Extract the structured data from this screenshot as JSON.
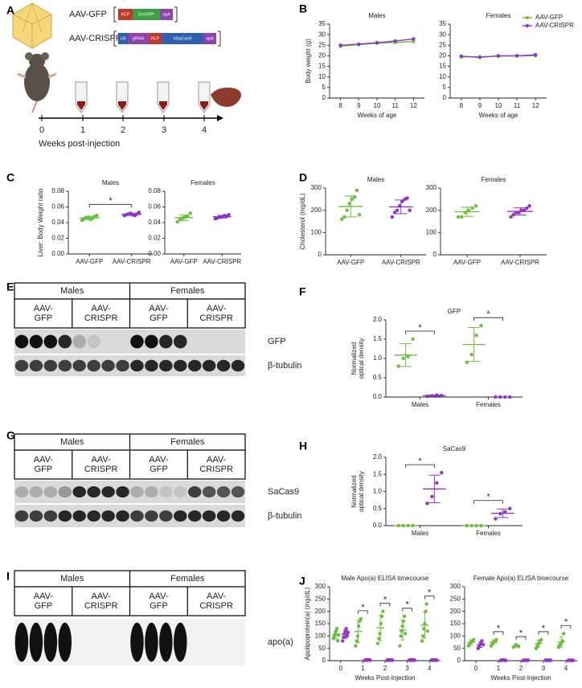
{
  "panel_labels": [
    "A",
    "B",
    "C",
    "D",
    "E",
    "F",
    "G",
    "H",
    "I",
    "J"
  ],
  "diagram": {
    "vectors": [
      {
        "name": "AAV-GFP",
        "elements": [
          "HLP",
          "EmGFP",
          "spA"
        ]
      },
      {
        "name": "AAV-CRISPR",
        "elements": [
          "U6",
          "gRNA",
          "HLP",
          "hSaCas9",
          "spA"
        ]
      }
    ],
    "timeline": {
      "ticks": [
        0,
        1,
        2,
        3,
        4
      ],
      "label": "Weeks post-injection"
    }
  },
  "blots": [
    {
      "groups": [
        "Males",
        "Females"
      ],
      "conditions": [
        "AAV-GFP",
        "AAV-CRISPR",
        "AAV-GFP",
        "AAV-CRISPR"
      ],
      "bands": [
        "GFP",
        "β-tubulin"
      ]
    },
    {
      "groups": [
        "Males",
        "Females"
      ],
      "conditions": [
        "AAV-GFP",
        "AAV-CRISPR",
        "AAV-GFP",
        "AAV-CRISPR"
      ],
      "bands": [
        "SaCas9",
        "β-tubulin"
      ]
    },
    {
      "groups": [
        "Males",
        "Females"
      ],
      "conditions": [
        "AAV-GFP",
        "AAV-CRISPR",
        "AAV-GFP",
        "AAV-CRISPR"
      ],
      "bands": [
        "apo(a)"
      ]
    }
  ],
  "chart_data": [
    {
      "type": "line",
      "title": "Males",
      "ylabel": "Body weight (g)",
      "xlabel": "Weeks of age",
      "x": [
        8,
        9,
        10,
        11,
        12
      ],
      "xlim": [
        7.4,
        12.6
      ],
      "xticks": [
        8,
        9,
        10,
        11,
        12
      ],
      "ylim": [
        0,
        35
      ],
      "yticks": [
        0,
        5,
        10,
        15,
        20,
        25,
        30,
        35
      ],
      "series": [
        {
          "color": "#6abf3c",
          "values": [
            24.5,
            25.3,
            26,
            26.3,
            26.8
          ]
        },
        {
          "color": "#9132c8",
          "values": [
            25,
            25.5,
            26.2,
            27,
            28
          ]
        }
      ]
    },
    {
      "type": "line",
      "title": "Females",
      "xlabel": "Weeks of age",
      "x": [
        8,
        9,
        10,
        11,
        12
      ],
      "xlim": [
        7.4,
        12.6
      ],
      "xticks": [
        8,
        9,
        10,
        11,
        12
      ],
      "ylim": [
        0,
        35
      ],
      "yticks": [
        0,
        5,
        10,
        15,
        20,
        25,
        30,
        35
      ],
      "legend": "upper right",
      "series": [
        {
          "name": "AAV-GFP",
          "color": "#6abf3c",
          "values": [
            19.5,
            19.5,
            19.8,
            20,
            20
          ]
        },
        {
          "name": "AAV-CRISPR",
          "color": "#9132c8",
          "values": [
            19.8,
            19.3,
            20,
            20,
            20.5
          ]
        }
      ]
    },
    {
      "type": "dot",
      "title": "Males",
      "ylabel": "Liver: Body Weight ratio",
      "categories": [
        "AAV-GFP",
        "AAV-CRISPR"
      ],
      "colors": [
        "#6abf3c",
        "#9132c8"
      ],
      "values": [
        [
          0.043,
          0.045,
          0.046,
          0.047,
          0.044,
          0.046,
          0.048,
          0.049
        ],
        [
          0.049,
          0.05,
          0.051,
          0.052,
          0.05,
          0.049,
          0.051,
          0.053
        ]
      ],
      "ylim": [
        0,
        0.08
      ],
      "yticks": [
        {
          "value": 0,
          "label": "0.00"
        },
        0.02,
        0.04,
        0.06,
        0.08
      ],
      "significance": "*"
    },
    {
      "type": "dot",
      "title": "Females",
      "categories": [
        "AAV-GFP",
        "AAV-CRISPR"
      ],
      "colors": [
        "#6abf3c",
        "#9132c8"
      ],
      "values": [
        [
          0.041,
          0.044,
          0.046,
          0.047,
          0.048,
          0.052
        ],
        [
          0.045,
          0.046,
          0.047,
          0.047,
          0.048,
          0.049,
          0.048,
          0.05
        ]
      ],
      "ylim": [
        0,
        0.08
      ],
      "yticks": [
        {
          "value": 0,
          "label": "0.00"
        },
        0.02,
        0.04,
        0.06,
        0.08
      ]
    },
    {
      "type": "dot",
      "title": "Males",
      "ylabel": "Cholesterol (mg/dL)",
      "categories": [
        "AAV-GFP",
        "AAV-CRISPR"
      ],
      "colors": [
        "#6abf3c",
        "#9132c8"
      ],
      "values": [
        [
          160,
          170,
          200,
          230,
          250,
          260,
          290,
          180
        ],
        [
          170,
          190,
          200,
          220,
          240,
          250,
          255,
          200
        ]
      ],
      "ylim": [
        0,
        300
      ],
      "yticks": [
        0,
        100,
        200,
        300
      ]
    },
    {
      "type": "dot",
      "title": "Females",
      "categories": [
        "AAV-GFP",
        "AAV-CRISPR"
      ],
      "colors": [
        "#6abf3c",
        "#9132c8"
      ],
      "values": [
        [
          170,
          170,
          190,
          200,
          210,
          220
        ],
        [
          170,
          180,
          190,
          190,
          200,
          200,
          210,
          220
        ]
      ],
      "ylim": [
        0,
        300
      ],
      "yticks": [
        0,
        100,
        200,
        300
      ]
    },
    {
      "type": "dot",
      "title": "GFP",
      "ylabel": [
        "Normalized",
        "optical density"
      ],
      "categories": [
        "Males",
        "Females"
      ],
      "series": [
        {
          "color": "#6abf3c",
          "values": [
            [
              0.8,
              1.0,
              1.05,
              1.5
            ],
            [
              0.9,
              1.1,
              1.6,
              1.85
            ]
          ]
        },
        {
          "color": "#9132c8",
          "values": [
            [
              0.02,
              0.03,
              0.05,
              0.04
            ],
            [
              0,
              0,
              0,
              0
            ]
          ]
        }
      ],
      "ylim": [
        0,
        2
      ],
      "yticks": [
        {
          "value": 0,
          "label": "0.0"
        },
        0.5,
        {
          "value": 1,
          "label": "1.0"
        },
        1.5,
        {
          "value": 2,
          "label": "2.0"
        }
      ],
      "significance": [
        "*",
        "*"
      ]
    },
    {
      "type": "dot",
      "title": "SaCas9",
      "ylabel": [
        "Normalized",
        "optical density"
      ],
      "categories": [
        "Males",
        "Females"
      ],
      "series": [
        {
          "color": "#6abf3c",
          "values": [
            [
              0,
              0,
              0,
              0
            ],
            [
              0,
              0,
              0,
              0
            ]
          ]
        },
        {
          "color": "#9132c8",
          "values": [
            [
              0.65,
              0.85,
              1.25,
              1.55
            ],
            [
              0.2,
              0.35,
              0.4,
              0.5
            ]
          ]
        }
      ],
      "ylim": [
        0,
        2
      ],
      "yticks": [
        {
          "value": 0,
          "label": "0.0"
        },
        0.5,
        {
          "value": 1,
          "label": "1.0"
        },
        1.5,
        {
          "value": 2,
          "label": "2.0"
        }
      ],
      "significance": [
        "*",
        "*"
      ]
    },
    {
      "type": "dot",
      "title": "Male Apo(a) ELISA timecourse",
      "ylabel": "Apolipoprotein(a) (mg/dL)",
      "xlabel": "Weeks Post-Injection",
      "categories": [
        "0",
        "1",
        "2",
        "3",
        "4"
      ],
      "series": [
        {
          "color": "#6abf3c",
          "values": [
            [
              90,
              100,
              110,
              120,
              130,
              80,
              105
            ],
            [
              60,
              80,
              100,
              140,
              160,
              170
            ],
            [
              70,
              90,
              110,
              150,
              180,
              200
            ],
            [
              60,
              100,
              120,
              140,
              160,
              180,
              110
            ],
            [
              80,
              100,
              130,
              150,
              200,
              230,
              120
            ]
          ]
        },
        {
          "color": "#9132c8",
          "values": [
            [
              80,
              95,
              110,
              120,
              130,
              100,
              115
            ],
            [
              2,
              3,
              2,
              4,
              3,
              2
            ],
            [
              2,
              2,
              3,
              2,
              3,
              2
            ],
            [
              2,
              3,
              2,
              2,
              3,
              2,
              2
            ],
            [
              2,
              2,
              3,
              2,
              2,
              3,
              2
            ]
          ]
        }
      ],
      "ylim": [
        0,
        300
      ],
      "yticks": [
        0,
        50,
        100,
        150,
        200,
        250,
        300
      ],
      "significance": [
        null,
        "*",
        "*",
        "*",
        "*"
      ]
    },
    {
      "type": "dot",
      "title": "Female Apo(a) ELISA timecourse",
      "xlabel": "Weeks Post-Injection",
      "categories": [
        "0",
        "1",
        "2",
        "3",
        "4"
      ],
      "series": [
        {
          "color": "#6abf3c",
          "values": [
            [
              60,
              70,
              75,
              80,
              85
            ],
            [
              60,
              70,
              75,
              80,
              85
            ],
            [
              55,
              60,
              65,
              60,
              58
            ],
            [
              50,
              60,
              70,
              80,
              85
            ],
            [
              55,
              65,
              70,
              80,
              110
            ]
          ]
        },
        {
          "color": "#9132c8",
          "values": [
            [
              50,
              60,
              70,
              80,
              65
            ],
            [
              1,
              2,
              3,
              2,
              1
            ],
            [
              1,
              2,
              2,
              1,
              2
            ],
            [
              2,
              1,
              2,
              1,
              2
            ],
            [
              1,
              2,
              1,
              2,
              1
            ]
          ]
        }
      ],
      "ylim": [
        0,
        300
      ],
      "yticks": [
        0,
        50,
        100,
        150,
        200,
        250,
        300
      ],
      "significance": [
        null,
        "*",
        "*",
        "*",
        "*"
      ]
    }
  ]
}
